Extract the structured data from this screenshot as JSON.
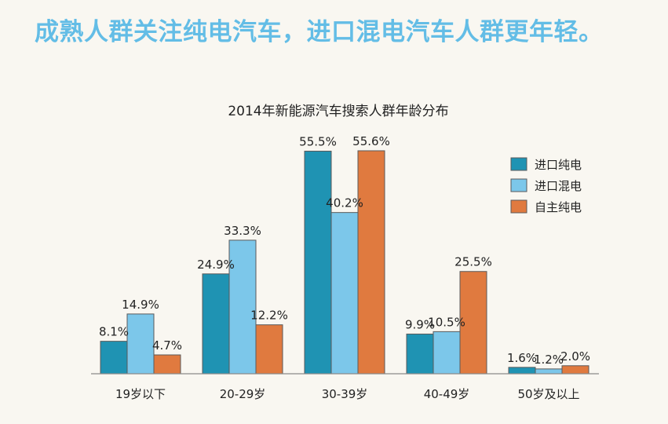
{
  "headline": "成熟人群关注纯电汽车，进口混电汽车人群更年轻。",
  "chart_data": {
    "type": "bar",
    "title": "2014年新能源汽车搜索人群年龄分布",
    "categories": [
      "19岁以下",
      "20-29岁",
      "30-39岁",
      "40-49岁",
      "50岁及以上"
    ],
    "series": [
      {
        "name": "进口纯电",
        "color": "#1f93b3",
        "values": [
          8.1,
          24.9,
          55.5,
          9.9,
          1.6
        ]
      },
      {
        "name": "进口混电",
        "color": "#7cc7ea",
        "values": [
          14.9,
          33.3,
          40.2,
          10.5,
          1.2
        ]
      },
      {
        "name": "自主纯电",
        "color": "#e07a3f",
        "values": [
          4.7,
          12.2,
          55.6,
          25.5,
          2.0
        ]
      }
    ],
    "value_labels": [
      [
        "8.1%",
        "24.9%",
        "55.5%",
        "9.9%",
        "1.6%"
      ],
      [
        "14.9%",
        "33.3%",
        "40.2%",
        "10.5%",
        "1.2%"
      ],
      [
        "4.7%",
        "12.2%",
        "55.6%",
        "25.5%",
        "2.0%"
      ]
    ],
    "ylim": [
      0,
      55.6
    ],
    "legend_position": "top-right",
    "xlabel": "",
    "ylabel": ""
  }
}
